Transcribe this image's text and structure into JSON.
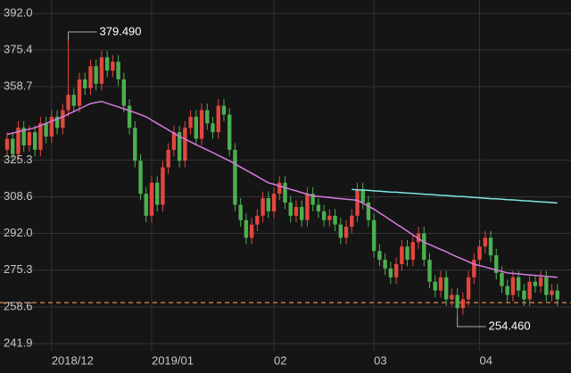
{
  "chart_data": {
    "type": "candlestick",
    "categories": [
      null,
      null,
      null,
      null,
      null,
      null,
      null,
      null,
      "2018/12",
      null,
      null,
      null,
      null,
      null,
      null,
      null,
      null,
      null,
      null,
      null,
      null,
      null,
      null,
      null,
      null,
      null,
      "2019/01",
      null,
      null,
      null,
      null,
      null,
      null,
      null,
      null,
      null,
      null,
      null,
      null,
      null,
      null,
      null,
      null,
      null,
      null,
      null,
      null,
      null,
      "02",
      null,
      null,
      null,
      null,
      null,
      null,
      null,
      null,
      null,
      null,
      null,
      null,
      null,
      null,
      null,
      null,
      null,
      "03",
      null,
      null,
      null,
      null,
      null,
      null,
      null,
      null,
      null,
      null,
      null,
      null,
      null,
      null,
      null,
      null,
      null,
      null,
      "04",
      null,
      null,
      null,
      null,
      null,
      null,
      null,
      null,
      null,
      null,
      null,
      null,
      null,
      null
    ],
    "open": [
      330,
      335,
      328,
      340,
      332,
      338,
      330,
      342,
      336,
      345,
      340,
      348,
      355,
      350,
      362,
      358,
      368,
      360,
      372,
      366,
      370,
      362,
      350,
      340,
      325,
      310,
      300,
      315,
      305,
      322,
      330,
      338,
      325,
      340,
      345,
      335,
      348,
      342,
      338,
      350,
      346,
      330,
      305,
      298,
      290,
      296,
      300,
      308,
      302,
      310,
      315,
      306,
      300,
      304,
      298,
      310,
      305,
      302,
      298,
      300,
      296,
      290,
      295,
      300,
      312,
      306,
      298,
      284,
      280,
      276,
      272,
      278,
      286,
      280,
      288,
      292,
      280,
      270,
      266,
      272,
      262,
      264,
      258,
      262,
      272,
      280,
      286,
      290,
      282,
      274,
      268,
      264,
      272,
      266,
      262,
      270,
      268,
      272,
      264,
      266
    ],
    "high": [
      338,
      338,
      343,
      343,
      341,
      341,
      345,
      345,
      348,
      348,
      351,
      379.49,
      358,
      365,
      365,
      371,
      371,
      375,
      375,
      373,
      373,
      365,
      353,
      343,
      328,
      313,
      318,
      318,
      325,
      333,
      341,
      341,
      343,
      348,
      348,
      351,
      351,
      345,
      353,
      353,
      349,
      333,
      308,
      301,
      299,
      303,
      311,
      311,
      313,
      318,
      318,
      309,
      307,
      307,
      313,
      313,
      308,
      305,
      303,
      303,
      299,
      298,
      303,
      315,
      315,
      309,
      301,
      287,
      283,
      279,
      281,
      289,
      289,
      291,
      295,
      295,
      283,
      273,
      275,
      275,
      267,
      267,
      265,
      275,
      283,
      289,
      293,
      293,
      285,
      277,
      271,
      275,
      275,
      269,
      273,
      273,
      275,
      275,
      269,
      269
    ],
    "low": [
      327,
      325,
      325,
      329,
      329,
      327,
      327,
      333,
      333,
      337,
      337,
      345,
      347,
      347,
      355,
      355,
      357,
      357,
      363,
      363,
      359,
      347,
      337,
      322,
      307,
      297,
      297,
      302,
      302,
      319,
      327,
      322,
      322,
      337,
      332,
      332,
      339,
      335,
      335,
      343,
      327,
      302,
      295,
      287,
      287,
      293,
      297,
      299,
      299,
      307,
      303,
      297,
      297,
      295,
      295,
      302,
      299,
      295,
      295,
      293,
      287,
      287,
      292,
      297,
      303,
      295,
      281,
      277,
      273,
      269,
      269,
      275,
      277,
      277,
      285,
      277,
      267,
      263,
      263,
      259,
      259,
      254.46,
      255,
      259,
      269,
      277,
      283,
      279,
      271,
      265,
      261,
      261,
      263,
      259,
      259,
      265,
      265,
      261,
      261,
      259
    ],
    "close": [
      335,
      328,
      340,
      332,
      338,
      330,
      342,
      336,
      345,
      340,
      348,
      355,
      350,
      362,
      358,
      368,
      360,
      372,
      366,
      370,
      362,
      350,
      340,
      325,
      310,
      300,
      315,
      305,
      322,
      330,
      338,
      325,
      340,
      345,
      335,
      348,
      342,
      338,
      350,
      346,
      330,
      305,
      298,
      290,
      296,
      300,
      308,
      302,
      310,
      315,
      306,
      300,
      304,
      298,
      310,
      305,
      302,
      298,
      300,
      296,
      290,
      295,
      300,
      312,
      306,
      298,
      284,
      280,
      276,
      272,
      278,
      286,
      280,
      288,
      292,
      280,
      270,
      266,
      272,
      262,
      264,
      258,
      262,
      272,
      280,
      286,
      290,
      282,
      274,
      268,
      264,
      272,
      266,
      262,
      270,
      268,
      272,
      264,
      266,
      262
    ],
    "up_color": "#e2473d",
    "down_color": "#4caf50",
    "series": [
      {
        "color": "#d77be0",
        "values": [
          337,
          337.6,
          338.2,
          338.8,
          339.4,
          340,
          341,
          342,
          343,
          344,
          345,
          346.2,
          347.4,
          348.6,
          349.8,
          351,
          351.5,
          352,
          351.1,
          350.3,
          349.5,
          348.6,
          347.8,
          346.9,
          346,
          345,
          343.5,
          342,
          340.5,
          339,
          337.5,
          336,
          334.8,
          333.6,
          332.3,
          331.1,
          329.9,
          328.7,
          327.4,
          326.2,
          325,
          323.6,
          322.1,
          320.7,
          319.3,
          317.9,
          316.4,
          315,
          314.3,
          313.5,
          312.8,
          312,
          311.3,
          310.5,
          309.8,
          309,
          308.8,
          308.5,
          308.3,
          308,
          307.8,
          307.5,
          307.3,
          307,
          305.7,
          304.3,
          303,
          301.3,
          299.7,
          298,
          296.3,
          294.7,
          293,
          291.3,
          289.7,
          288,
          286.9,
          285.8,
          284.7,
          283.6,
          282.4,
          281.3,
          280.2,
          279.1,
          278,
          277.3,
          276.7,
          276,
          275.3,
          274.7,
          274,
          273.8,
          273.6,
          273.3,
          273.1,
          272.9,
          272.7,
          272.4,
          272.2,
          272
        ]
      },
      {
        "color": "#7fe8e8",
        "values": [
          null,
          null,
          null,
          null,
          null,
          null,
          null,
          null,
          null,
          null,
          null,
          null,
          null,
          null,
          null,
          null,
          null,
          null,
          null,
          null,
          null,
          null,
          null,
          null,
          null,
          null,
          null,
          null,
          null,
          null,
          null,
          null,
          null,
          null,
          null,
          null,
          null,
          null,
          null,
          null,
          null,
          null,
          null,
          null,
          null,
          null,
          null,
          null,
          null,
          null,
          null,
          null,
          null,
          null,
          null,
          null,
          null,
          null,
          null,
          null,
          null,
          null,
          312,
          311.8,
          311.7,
          311.5,
          311.3,
          311.2,
          311,
          310.8,
          310.7,
          310.5,
          310.3,
          310.2,
          310,
          309.8,
          309.7,
          309.5,
          309.3,
          309.2,
          309,
          308.8,
          308.7,
          308.5,
          308.3,
          308.2,
          308,
          307.8,
          307.7,
          307.5,
          307.3,
          307.2,
          307,
          306.8,
          306.7,
          306.5,
          306.3,
          306.2,
          306,
          305.8
        ]
      }
    ],
    "ylim": [
      241.9,
      392.0
    ],
    "yticks": [
      {
        "value": 241.9,
        "label": "241.9"
      },
      {
        "value": 258.6,
        "label": "258.6"
      },
      {
        "value": 275.3,
        "label": "275.3"
      },
      {
        "value": 292.0,
        "label": "292.0"
      },
      {
        "value": 308.6,
        "label": "308.6"
      },
      {
        "value": 325.3,
        "label": "325.3"
      },
      {
        "value": 358.7,
        "label": "358.7"
      },
      {
        "value": 375.4,
        "label": "375.4"
      },
      {
        "value": 392.0,
        "label": "392.0"
      }
    ],
    "grid": true,
    "reference_line": {
      "value": 260.5,
      "color": "#e8894a"
    },
    "annotations": [
      {
        "label": "379.490",
        "value": 379.49,
        "of": "high"
      },
      {
        "label": "254.460",
        "value": 254.46,
        "of": "low"
      }
    ]
  }
}
